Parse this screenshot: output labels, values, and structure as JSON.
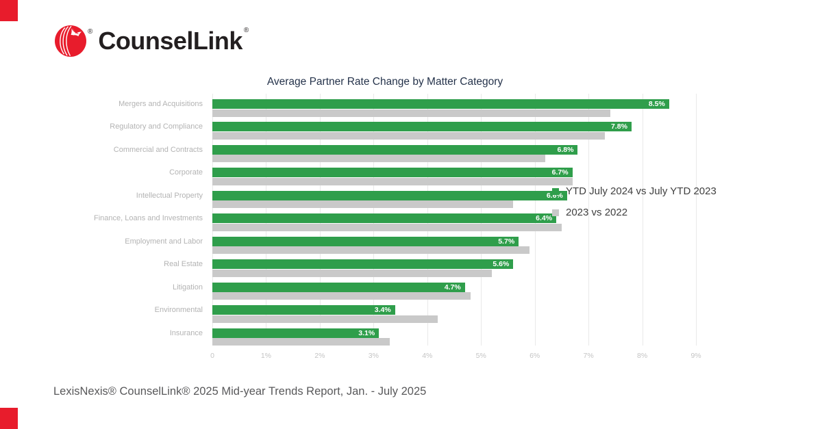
{
  "brand": {
    "logo_text": "CounselLink",
    "registered_mark": "®",
    "accent_color": "#e81c2c"
  },
  "chart_data": {
    "type": "bar",
    "orientation": "horizontal",
    "title": "Average Partner Rate Change by Matter Category",
    "categories": [
      "Mergers and Acquisitions",
      "Regulatory and Compliance",
      "Commercial and Contracts",
      "Corporate",
      "Intellectual Property",
      "Finance, Loans and Investments",
      "Employment and Labor",
      "Real Estate",
      "Litigation",
      "Environmental",
      "Insurance"
    ],
    "series": [
      {
        "name": "YTD July 2024 vs July YTD 2023",
        "color": "#2f9e4b",
        "values": [
          8.5,
          7.8,
          6.8,
          6.7,
          6.6,
          6.4,
          5.7,
          5.6,
          4.7,
          3.4,
          3.1
        ],
        "labels": [
          "8.5%",
          "7.8%",
          "6.8%",
          "6.7%",
          "6.6%",
          "6.4%",
          "5.7%",
          "5.6%",
          "4.7%",
          "3.4%",
          "3.1%"
        ]
      },
      {
        "name": "2023 vs 2022",
        "color": "#c9c9c9",
        "values": [
          7.4,
          7.3,
          6.2,
          6.7,
          5.6,
          6.5,
          5.9,
          5.2,
          4.8,
          4.2,
          3.3
        ]
      }
    ],
    "x_axis": {
      "tick_labels": [
        "0",
        "1%",
        "2%",
        "3%",
        "4%",
        "5%",
        "6%",
        "7%",
        "8%",
        "9%"
      ],
      "tick_values": [
        0,
        1,
        2,
        3,
        4,
        5,
        6,
        7,
        8,
        9
      ],
      "min": 0,
      "max": 9
    },
    "grid": true,
    "legend_position": "right-middle"
  },
  "footer": {
    "source_text": "LexisNexis® CounselLink® 2025 Mid-year Trends Report, Jan. - July 2025"
  }
}
